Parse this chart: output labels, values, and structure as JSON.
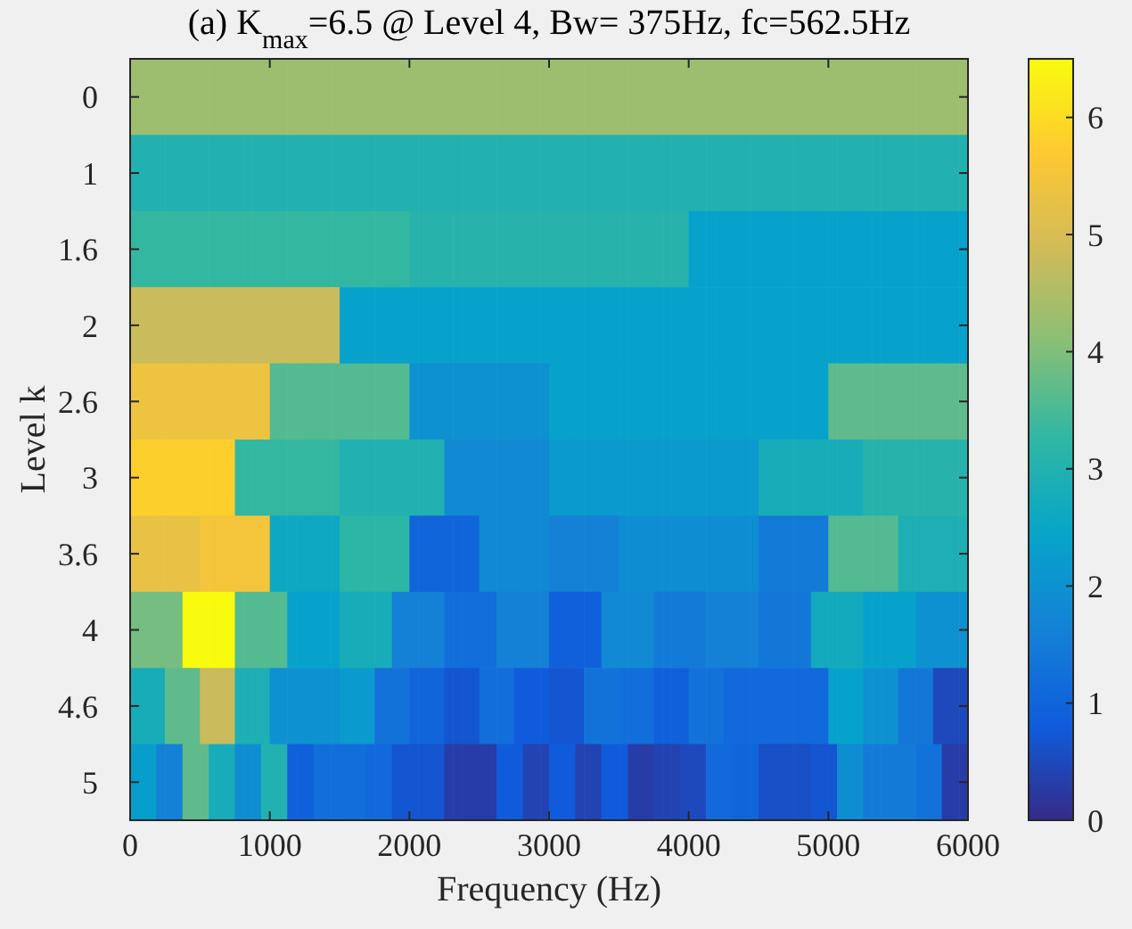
{
  "chart_data": {
    "type": "heatmap",
    "title": "(a) K$_{max}$=6.5 @ Level 4, Bw= 375Hz, fc=562.5Hz",
    "xlabel": "Frequency (Hz)",
    "ylabel": "Level k",
    "xlim": [
      0,
      6000
    ],
    "xticks": [
      0,
      1000,
      2000,
      3000,
      4000,
      5000,
      6000
    ],
    "y_categories": [
      "0",
      "1",
      "1.6",
      "2",
      "2.6",
      "3",
      "3.6",
      "4",
      "4.6",
      "5"
    ],
    "clim": [
      0,
      6.5
    ],
    "cticks": [
      0,
      1,
      2,
      3,
      4,
      5,
      6
    ],
    "cells": [
      [
        4.3,
        4.3,
        4.3,
        4.3,
        4.3,
        4.3,
        4.3,
        4.3,
        4.3,
        4.3,
        4.3,
        4.3,
        4.3,
        4.3,
        4.3,
        4.3,
        4.3,
        4.3,
        4.3,
        4.3,
        4.3,
        4.3,
        4.3,
        4.3,
        4.3,
        4.3,
        4.3,
        4.3,
        4.3,
        4.3,
        4.3,
        4.3,
        4.3,
        4.3,
        4.3,
        4.3,
        4.3,
        4.3,
        4.3,
        4.3,
        4.3,
        4.3,
        4.3,
        4.3,
        4.3,
        4.3,
        4.3,
        4.3,
        4.3,
        4.3,
        4.3,
        4.3,
        4.3,
        4.3,
        4.3,
        4.3,
        4.3,
        4.3,
        4.3,
        4.3,
        4.3,
        4.3,
        4.3,
        4.3,
        4.3,
        4.3,
        4.3,
        4.3,
        4.3,
        4.3,
        4.3,
        4.3,
        4.3,
        4.3,
        4.3,
        4.3,
        4.3,
        4.3,
        4.3,
        4.3,
        4.3,
        4.3,
        4.3,
        4.3,
        4.3,
        4.3,
        4.3,
        4.3,
        4.3,
        4.3,
        4.3,
        4.3,
        4.3,
        4.3,
        4.3,
        4.3
      ],
      [
        3.0,
        3.0,
        3.0,
        3.0,
        3.0,
        3.0,
        3.0,
        3.0,
        3.0,
        3.0,
        3.0,
        3.0,
        3.0,
        3.0,
        3.0,
        3.0,
        3.0,
        3.0,
        3.0,
        3.0,
        3.0,
        3.0,
        3.0,
        3.0,
        3.0,
        3.0,
        3.0,
        3.0,
        3.0,
        3.0,
        3.0,
        3.0,
        3.0,
        3.0,
        3.0,
        3.0,
        3.0,
        3.0,
        3.0,
        3.0,
        3.0,
        3.0,
        3.0,
        3.0,
        3.0,
        3.0,
        3.0,
        3.0,
        3.0,
        3.0,
        3.0,
        3.0,
        3.0,
        3.0,
        3.0,
        3.0,
        3.0,
        3.0,
        3.0,
        3.0,
        3.0,
        3.0,
        3.0,
        3.0,
        3.0,
        3.0,
        3.0,
        3.0,
        3.0,
        3.0,
        3.0,
        3.0,
        3.0,
        3.0,
        3.0,
        3.0,
        3.0,
        3.0,
        3.0,
        3.0,
        3.0,
        3.0,
        3.0,
        3.0,
        3.0,
        3.0,
        3.0,
        3.0,
        3.0,
        3.0,
        3.0,
        3.0,
        3.0,
        3.0,
        3.0,
        3.0
      ],
      [
        3.3,
        3.3,
        3.3,
        3.3,
        3.3,
        3.3,
        3.3,
        3.3,
        3.3,
        3.3,
        3.3,
        3.3,
        3.3,
        3.3,
        3.3,
        3.3,
        3.3,
        3.3,
        3.3,
        3.3,
        3.3,
        3.3,
        3.3,
        3.3,
        3.3,
        3.3,
        3.3,
        3.3,
        3.3,
        3.3,
        3.3,
        3.3,
        3.1,
        3.1,
        3.1,
        3.1,
        3.1,
        3.1,
        3.1,
        3.1,
        3.1,
        3.1,
        3.1,
        3.1,
        3.1,
        3.1,
        3.1,
        3.1,
        3.1,
        3.1,
        3.1,
        3.1,
        3.1,
        3.1,
        3.1,
        3.1,
        3.1,
        3.1,
        3.1,
        3.1,
        3.1,
        3.1,
        3.1,
        3.1,
        2.4,
        2.4,
        2.4,
        2.4,
        2.4,
        2.4,
        2.4,
        2.4,
        2.4,
        2.4,
        2.4,
        2.4,
        2.4,
        2.4,
        2.4,
        2.4,
        2.4,
        2.4,
        2.4,
        2.4,
        2.4,
        2.4,
        2.4,
        2.4,
        2.4,
        2.4,
        2.4,
        2.4,
        2.4,
        2.4,
        2.4,
        2.4
      ],
      [
        4.8,
        4.8,
        4.8,
        4.8,
        4.8,
        4.8,
        4.8,
        4.8,
        4.8,
        4.8,
        4.8,
        4.8,
        4.8,
        4.8,
        4.8,
        4.8,
        4.8,
        4.8,
        4.8,
        4.8,
        4.8,
        4.8,
        4.8,
        4.8,
        2.4,
        2.4,
        2.4,
        2.4,
        2.4,
        2.4,
        2.4,
        2.4,
        2.4,
        2.4,
        2.4,
        2.4,
        2.4,
        2.4,
        2.4,
        2.4,
        2.4,
        2.4,
        2.4,
        2.4,
        2.4,
        2.4,
        2.4,
        2.4,
        2.4,
        2.4,
        2.4,
        2.4,
        2.4,
        2.4,
        2.4,
        2.4,
        2.4,
        2.4,
        2.4,
        2.4,
        2.4,
        2.4,
        2.4,
        2.4,
        2.4,
        2.4,
        2.4,
        2.4,
        2.4,
        2.4,
        2.4,
        2.4,
        2.4,
        2.4,
        2.4,
        2.4,
        2.4,
        2.4,
        2.4,
        2.4,
        2.4,
        2.4,
        2.4,
        2.4,
        2.4,
        2.4,
        2.4,
        2.4,
        2.4,
        2.4,
        2.4,
        2.4,
        2.4,
        2.4,
        2.4,
        2.4
      ],
      [
        5.4,
        5.4,
        5.4,
        5.4,
        5.4,
        5.4,
        5.4,
        5.4,
        5.4,
        5.4,
        5.4,
        5.4,
        5.4,
        5.4,
        5.4,
        5.4,
        3.6,
        3.6,
        3.6,
        3.6,
        3.6,
        3.6,
        3.6,
        3.6,
        3.6,
        3.6,
        3.6,
        3.6,
        3.6,
        3.6,
        3.6,
        3.6,
        2.0,
        2.0,
        2.0,
        2.0,
        2.0,
        2.0,
        2.0,
        2.0,
        2.0,
        2.0,
        2.0,
        2.0,
        2.0,
        2.0,
        2.0,
        2.0,
        2.4,
        2.4,
        2.4,
        2.4,
        2.4,
        2.4,
        2.4,
        2.4,
        2.4,
        2.4,
        2.4,
        2.4,
        2.4,
        2.4,
        2.4,
        2.4,
        2.4,
        2.4,
        2.4,
        2.4,
        2.4,
        2.4,
        2.4,
        2.4,
        2.4,
        2.4,
        2.4,
        2.4,
        2.4,
        2.4,
        2.4,
        2.4,
        3.7,
        3.7,
        3.7,
        3.7,
        3.7,
        3.7,
        3.7,
        3.7,
        3.7,
        3.7,
        3.7,
        3.7,
        3.7,
        3.7,
        3.7,
        3.7
      ],
      [
        5.8,
        5.8,
        5.8,
        5.8,
        5.8,
        5.8,
        5.8,
        5.8,
        5.8,
        5.8,
        5.8,
        5.8,
        3.3,
        3.3,
        3.3,
        3.3,
        3.3,
        3.3,
        3.3,
        3.3,
        3.3,
        3.3,
        3.3,
        3.3,
        3.0,
        3.0,
        3.0,
        3.0,
        3.0,
        3.0,
        3.0,
        3.0,
        3.0,
        3.0,
        3.0,
        3.0,
        1.8,
        1.8,
        1.8,
        1.8,
        1.8,
        1.8,
        1.8,
        1.8,
        1.8,
        1.8,
        1.8,
        1.8,
        2.2,
        2.2,
        2.2,
        2.2,
        2.2,
        2.2,
        2.2,
        2.2,
        2.2,
        2.2,
        2.2,
        2.2,
        2.2,
        2.2,
        2.2,
        2.2,
        2.2,
        2.2,
        2.2,
        2.2,
        2.2,
        2.2,
        2.2,
        2.2,
        2.8,
        2.8,
        2.8,
        2.8,
        2.8,
        2.8,
        2.8,
        2.8,
        2.8,
        2.8,
        2.8,
        2.8,
        3.1,
        3.1,
        3.1,
        3.1,
        3.1,
        3.1,
        3.1,
        3.1,
        3.1,
        3.1,
        3.1,
        3.1
      ],
      [
        5.3,
        5.3,
        5.3,
        5.3,
        5.3,
        5.3,
        5.3,
        5.3,
        5.5,
        5.5,
        5.5,
        5.5,
        5.5,
        5.5,
        5.5,
        5.5,
        2.6,
        2.6,
        2.6,
        2.6,
        2.6,
        2.6,
        2.6,
        2.6,
        3.2,
        3.2,
        3.2,
        3.2,
        3.2,
        3.2,
        3.2,
        3.2,
        1.0,
        1.0,
        1.0,
        1.0,
        1.0,
        1.0,
        1.0,
        1.0,
        1.8,
        1.8,
        1.8,
        1.8,
        1.8,
        1.8,
        1.8,
        1.8,
        1.6,
        1.6,
        1.6,
        1.6,
        1.6,
        1.6,
        1.6,
        1.6,
        1.9,
        1.9,
        1.9,
        1.9,
        1.9,
        1.9,
        1.9,
        1.9,
        1.9,
        1.9,
        1.9,
        1.9,
        1.9,
        1.9,
        1.9,
        1.9,
        1.5,
        1.5,
        1.5,
        1.5,
        1.5,
        1.5,
        1.5,
        1.5,
        3.6,
        3.6,
        3.6,
        3.6,
        3.6,
        3.6,
        3.6,
        3.6,
        2.9,
        2.9,
        2.9,
        2.9,
        2.9,
        2.9,
        2.9,
        2.9
      ],
      [
        3.9,
        3.9,
        3.9,
        3.9,
        3.9,
        3.9,
        6.5,
        6.5,
        6.5,
        6.5,
        6.5,
        6.5,
        3.6,
        3.6,
        3.6,
        3.6,
        3.6,
        3.6,
        2.4,
        2.4,
        2.4,
        2.4,
        2.4,
        2.4,
        2.8,
        2.8,
        2.8,
        2.8,
        2.8,
        2.8,
        1.6,
        1.6,
        1.6,
        1.6,
        1.6,
        1.6,
        1.2,
        1.2,
        1.2,
        1.2,
        1.2,
        1.2,
        1.6,
        1.6,
        1.6,
        1.6,
        1.6,
        1.6,
        0.9,
        0.9,
        0.9,
        0.9,
        0.9,
        0.9,
        1.8,
        1.8,
        1.8,
        1.8,
        1.8,
        1.8,
        1.5,
        1.5,
        1.5,
        1.5,
        1.5,
        1.5,
        1.6,
        1.6,
        1.6,
        1.6,
        1.6,
        1.6,
        1.4,
        1.4,
        1.4,
        1.4,
        1.4,
        1.4,
        2.7,
        2.7,
        2.7,
        2.7,
        2.7,
        2.7,
        2.4,
        2.4,
        2.4,
        2.4,
        2.4,
        2.4,
        2.0,
        2.0,
        2.0,
        2.0,
        2.0,
        2.0
      ],
      [
        2.8,
        2.8,
        2.8,
        2.8,
        3.7,
        3.7,
        3.7,
        3.7,
        4.8,
        4.8,
        4.8,
        4.8,
        2.9,
        2.9,
        2.9,
        2.9,
        2.0,
        2.0,
        2.0,
        2.0,
        2.0,
        2.0,
        2.0,
        2.0,
        2.2,
        2.2,
        2.2,
        2.2,
        1.3,
        1.3,
        1.3,
        1.3,
        1.0,
        1.0,
        1.0,
        1.0,
        0.7,
        0.7,
        0.7,
        0.7,
        1.2,
        1.2,
        1.2,
        1.2,
        0.8,
        0.8,
        0.8,
        0.8,
        0.7,
        0.7,
        0.7,
        0.7,
        1.3,
        1.3,
        1.3,
        1.3,
        1.2,
        1.2,
        1.2,
        1.2,
        0.9,
        0.9,
        0.9,
        0.9,
        1.3,
        1.3,
        1.3,
        1.3,
        1.1,
        1.1,
        1.1,
        1.1,
        1.1,
        1.1,
        1.1,
        1.1,
        1.1,
        1.1,
        1.1,
        1.1,
        2.4,
        2.4,
        2.4,
        2.4,
        2.0,
        2.0,
        2.0,
        2.0,
        1.4,
        1.4,
        1.4,
        1.4,
        0.5,
        0.5,
        0.5,
        0.5
      ],
      [
        2.3,
        2.3,
        2.3,
        1.6,
        1.6,
        1.6,
        3.7,
        3.7,
        3.7,
        2.8,
        2.8,
        2.8,
        1.9,
        1.9,
        1.9,
        3.0,
        3.0,
        3.0,
        0.9,
        0.9,
        0.9,
        1.2,
        1.2,
        1.2,
        1.2,
        1.2,
        1.2,
        1.1,
        1.1,
        1.1,
        0.7,
        0.7,
        0.7,
        0.7,
        0.7,
        0.7,
        0.3,
        0.3,
        0.3,
        0.3,
        0.3,
        0.3,
        0.8,
        0.8,
        0.8,
        0.4,
        0.4,
        0.4,
        0.8,
        0.8,
        0.8,
        0.4,
        0.4,
        0.4,
        0.8,
        0.8,
        0.8,
        0.3,
        0.3,
        0.3,
        0.4,
        0.4,
        0.4,
        0.5,
        0.5,
        0.5,
        1.1,
        1.1,
        1.1,
        1.0,
        1.0,
        1.0,
        0.6,
        0.6,
        0.6,
        0.6,
        0.6,
        0.6,
        0.7,
        0.7,
        0.7,
        1.9,
        1.9,
        1.9,
        1.5,
        1.5,
        1.5,
        1.5,
        1.5,
        1.5,
        1.3,
        1.3,
        1.3,
        0.3,
        0.3,
        0.3
      ]
    ]
  }
}
